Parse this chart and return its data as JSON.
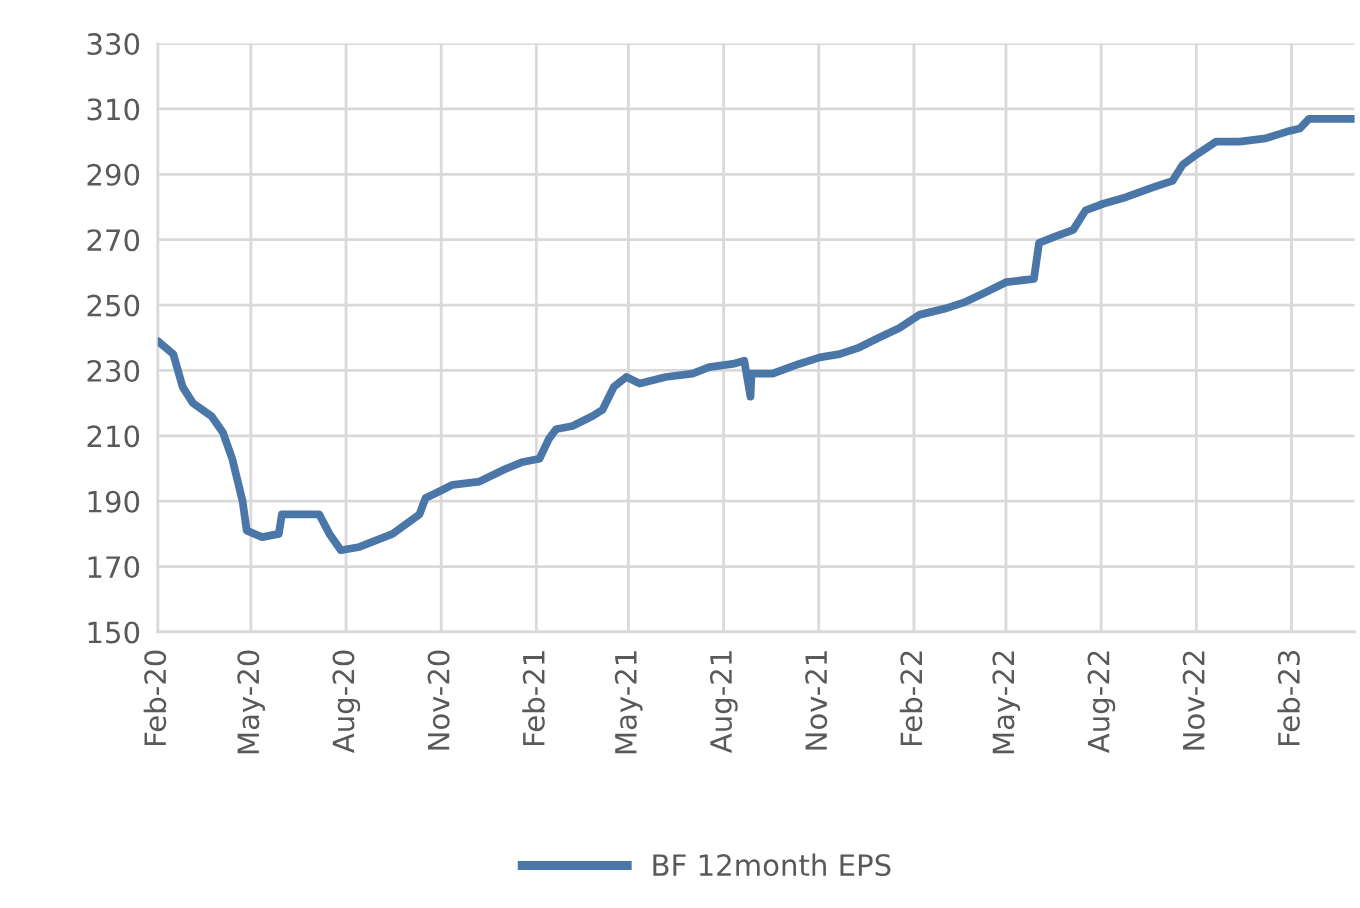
{
  "chart_data": {
    "type": "line",
    "x": [
      "2020-02-01",
      "2020-02-16",
      "2020-02-25",
      "2020-03-06",
      "2020-03-24",
      "2020-04-04",
      "2020-04-13",
      "2020-04-23",
      "2020-04-27",
      "2020-05-12",
      "2020-05-28",
      "2020-05-31",
      "2020-07-06",
      "2020-07-16",
      "2020-07-27",
      "2020-08-14",
      "2020-09-15",
      "2020-10-11",
      "2020-10-17",
      "2020-10-30",
      "2020-11-12",
      "2020-12-08",
      "2021-01-03",
      "2021-01-19",
      "2021-02-04",
      "2021-02-13",
      "2021-02-20",
      "2021-03-08",
      "2021-03-27",
      "2021-04-06",
      "2021-04-17",
      "2021-04-29",
      "2021-05-12",
      "2021-06-06",
      "2021-07-02",
      "2021-07-18",
      "2021-08-10",
      "2021-08-21",
      "2021-08-27",
      "2021-08-28",
      "2021-09-17",
      "2021-10-13",
      "2021-11-02",
      "2021-11-21",
      "2021-12-10",
      "2021-12-29",
      "2022-01-18",
      "2022-02-06",
      "2022-03-04",
      "2022-03-23",
      "2022-04-12",
      "2022-05-01",
      "2022-05-28",
      "2022-06-02",
      "2022-06-18",
      "2022-07-05",
      "2022-07-17",
      "2022-08-03",
      "2022-08-25",
      "2022-09-20",
      "2022-10-09",
      "2022-10-19",
      "2022-11-01",
      "2022-11-20",
      "2022-12-13",
      "2023-01-07",
      "2023-01-27",
      "2023-02-09",
      "2023-02-18",
      "2023-03-13",
      "2023-04-02"
    ],
    "series": [
      {
        "name": "BF 12month EPS",
        "color": "#4a76a8",
        "values": [
          239,
          235,
          225,
          220,
          216,
          211,
          203,
          190,
          181,
          179,
          180,
          186,
          186,
          180,
          175,
          176,
          180,
          186,
          191,
          193,
          195,
          196,
          200,
          202,
          203,
          209,
          212,
          213,
          216,
          218,
          225,
          228,
          226,
          228,
          229,
          231,
          232,
          233,
          222,
          229,
          229,
          232,
          234,
          235,
          237,
          240,
          243,
          247,
          249,
          251,
          254,
          257,
          258,
          269,
          271,
          273,
          279,
          281,
          283,
          286,
          288,
          293,
          296,
          300,
          300,
          301,
          303,
          304,
          307,
          307,
          307
        ]
      }
    ],
    "xlim": [
      "2020-02-01",
      "2023-04-03"
    ],
    "xticks": [
      {
        "value": "2020-02-01",
        "label": "Feb-20"
      },
      {
        "value": "2020-05-01",
        "label": "May-20"
      },
      {
        "value": "2020-08-01",
        "label": "Aug-20"
      },
      {
        "value": "2020-11-01",
        "label": "Nov-20"
      },
      {
        "value": "2021-02-01",
        "label": "Feb-21"
      },
      {
        "value": "2021-05-01",
        "label": "May-21"
      },
      {
        "value": "2021-08-01",
        "label": "Aug-21"
      },
      {
        "value": "2021-11-01",
        "label": "Nov-21"
      },
      {
        "value": "2022-02-01",
        "label": "Feb-22"
      },
      {
        "value": "2022-05-01",
        "label": "May-22"
      },
      {
        "value": "2022-08-01",
        "label": "Aug-22"
      },
      {
        "value": "2022-11-01",
        "label": "Nov-22"
      },
      {
        "value": "2023-02-01",
        "label": "Feb-23"
      }
    ],
    "ylim": [
      150,
      330
    ],
    "yticks": [
      150,
      170,
      190,
      210,
      230,
      250,
      270,
      290,
      310,
      330
    ],
    "grid": true,
    "legend": "bottom",
    "line_style": "solid"
  }
}
